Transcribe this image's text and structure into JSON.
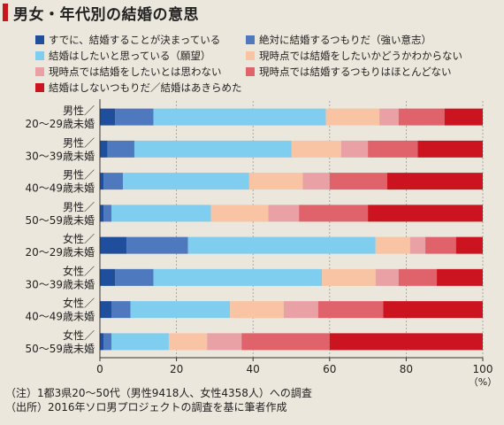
{
  "title": "男女・年代別の結婚の意思",
  "chart_data": {
    "type": "bar",
    "orientation": "horizontal",
    "stacked": true,
    "xlim": [
      0,
      100
    ],
    "xticks": [
      0,
      20,
      40,
      60,
      80,
      100
    ],
    "xunit": "（%）",
    "grid": true,
    "categories": [
      [
        "男性／",
        "20～29歳未婚"
      ],
      [
        "男性／",
        "30～39歳未婚"
      ],
      [
        "男性／",
        "40～49歳未婚"
      ],
      [
        "男性／",
        "50～59歳未婚"
      ],
      [
        "女性／",
        "20～29歳未婚"
      ],
      [
        "女性／",
        "30～39歳未婚"
      ],
      [
        "女性／",
        "40～49歳未婚"
      ],
      [
        "女性／",
        "50～59歳未婚"
      ]
    ],
    "series": [
      {
        "name": "すでに、結婚することが決まっている",
        "color": "#1f4e9c",
        "values": [
          4,
          2,
          1,
          1,
          7,
          4,
          3,
          1
        ]
      },
      {
        "name": "絶対に結婚するつもりだ（強い意志）",
        "color": "#4f79be",
        "values": [
          10,
          7,
          5,
          2,
          16,
          10,
          5,
          2
        ]
      },
      {
        "name": "結婚はしたいと思っている（願望）",
        "color": "#7fcdef",
        "values": [
          45,
          41,
          33,
          26,
          49,
          44,
          26,
          15
        ]
      },
      {
        "name": "現時点では結婚をしたいかどうかわからない",
        "color": "#f8c4a3",
        "values": [
          14,
          13,
          14,
          15,
          9,
          14,
          14,
          10
        ]
      },
      {
        "name": "現時点では結婚をしたいとは思わない",
        "color": "#eaa1a6",
        "values": [
          5,
          7,
          7,
          8,
          4,
          6,
          9,
          9
        ]
      },
      {
        "name": "現時点では結婚するつもりはほとんどない",
        "color": "#e0636c",
        "values": [
          12,
          13,
          15,
          18,
          8,
          10,
          17,
          23
        ]
      },
      {
        "name": "結婚はしないつもりだ／結婚はあきらめた",
        "color": "#cc1420",
        "values": [
          10,
          17,
          25,
          30,
          7,
          12,
          26,
          40
        ]
      }
    ]
  },
  "notes": [
    "（注）1都3県20～50代（男性9418人、女性4358人）への調査",
    "（出所）2016年ソロ男プロジェクトの調査を基に筆者作成"
  ]
}
